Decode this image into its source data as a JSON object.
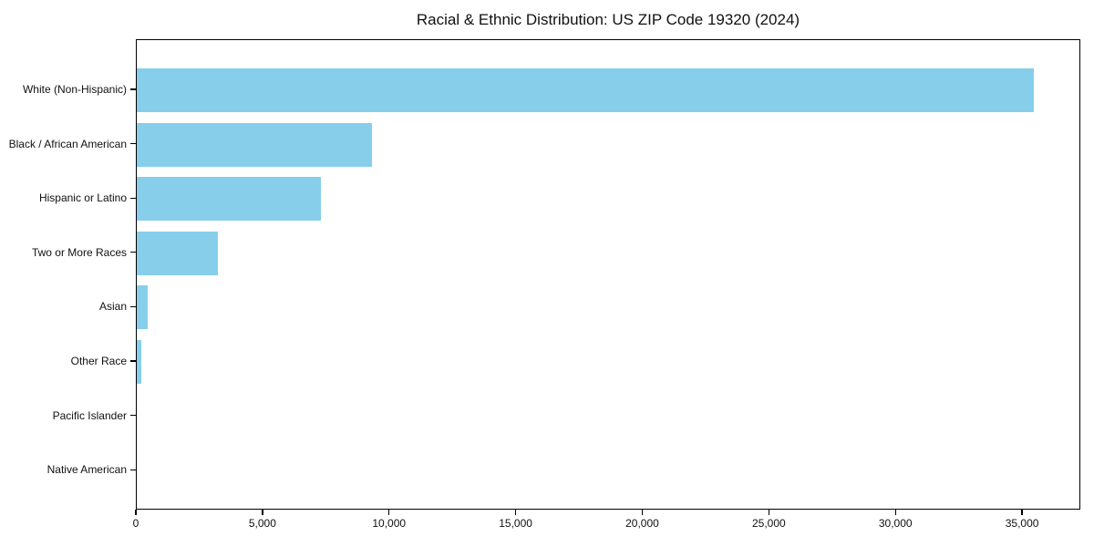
{
  "figure": {
    "title": "Racial & Ethnic Distribution: US ZIP Code 19320 (2024)"
  },
  "chart_data": {
    "type": "bar",
    "orientation": "horizontal",
    "title": "Racial & Ethnic Distribution: US ZIP Code 19320 (2024)",
    "categories": [
      "White (Non-Hispanic)",
      "Black / African American",
      "Hispanic or Latino",
      "Two or More Races",
      "Asian",
      "Other Race",
      "Pacific Islander",
      "Native American"
    ],
    "values": [
      35500,
      9300,
      7300,
      3200,
      440,
      180,
      0,
      0
    ],
    "xlabel": "",
    "ylabel": "",
    "xlim": [
      0,
      37300
    ],
    "xticks": [
      0,
      5000,
      10000,
      15000,
      20000,
      25000,
      30000,
      35000
    ],
    "xtick_labels": [
      "0",
      "5,000",
      "10,000",
      "15,000",
      "20,000",
      "25,000",
      "30,000",
      "35,000"
    ],
    "bar_color": "#87CEEB",
    "grid": false,
    "legend": null,
    "category_order": "top-to-bottom descending"
  }
}
